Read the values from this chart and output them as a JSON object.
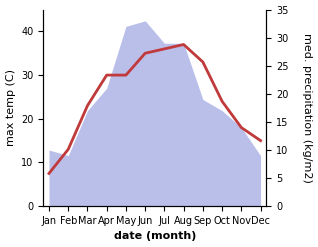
{
  "months": [
    "Jan",
    "Feb",
    "Mar",
    "Apr",
    "May",
    "Jun",
    "Jul",
    "Aug",
    "Sep",
    "Oct",
    "Nov",
    "Dec"
  ],
  "temp": [
    7.5,
    13,
    23,
    30,
    30,
    35,
    36,
    37,
    33,
    24,
    18,
    15
  ],
  "precip": [
    10,
    9,
    17,
    21,
    32,
    33,
    29,
    29,
    19,
    17,
    14,
    9
  ],
  "temp_color": "#c0393b",
  "precip_color_fill": "#b3b8e8",
  "ylabel_left": "max temp (C)",
  "ylabel_right": "med. precipitation (kg/m2)",
  "xlabel": "date (month)",
  "ylim_left": [
    0,
    45
  ],
  "ylim_right": [
    0,
    35
  ],
  "yticks_left": [
    0,
    10,
    20,
    30,
    40
  ],
  "yticks_right": [
    0,
    5,
    10,
    15,
    20,
    25,
    30,
    35
  ],
  "background_color": "#ffffff",
  "axis_label_fontsize": 8,
  "tick_fontsize": 7,
  "linewidth": 2.0
}
